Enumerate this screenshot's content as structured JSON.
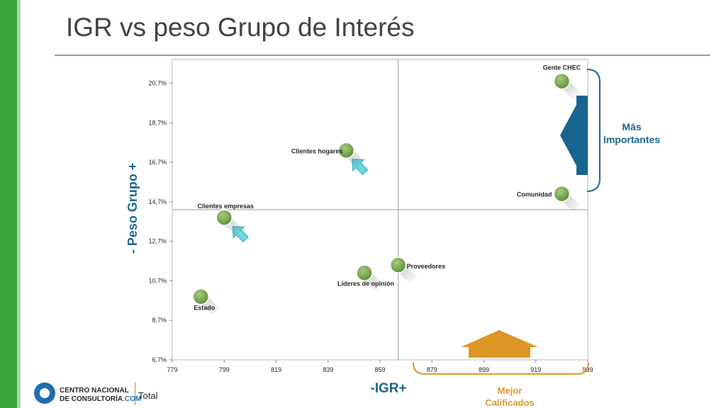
{
  "slide": {
    "title": "IGR vs peso Grupo de Interés",
    "footer": {
      "logo_line1": "CENTRO NACIONAL",
      "logo_line2_main": "DE CONSULTORÍA",
      "logo_line2_accent": ".COM",
      "label": "Total"
    }
  },
  "colors": {
    "accent_green": "#3aa33a",
    "point_fill": "#7aa850",
    "arrow_cyan": "#6cd6e2",
    "arrow_blue": "#17648f",
    "arrow_orange": "#dd9526",
    "axis_label_blue": "#17648f",
    "callout_orange": "#dd9526"
  },
  "chart_data": {
    "type": "scatter",
    "title": "",
    "xlabel": "-IGR+",
    "ylabel": "- Peso Grupo +",
    "xlim": [
      779,
      939
    ],
    "ylim": [
      6.7,
      21.9
    ],
    "x_ticks": [
      779,
      799,
      819,
      839,
      859,
      879,
      899,
      919,
      939
    ],
    "x_tick_labels": [
      "779",
      "799",
      "819",
      "839",
      "859",
      "879",
      "899",
      "919",
      "939"
    ],
    "y_ticks": [
      6.7,
      8.7,
      10.7,
      12.7,
      14.7,
      16.7,
      18.7,
      20.7
    ],
    "y_tick_labels": [
      "6,7%",
      "8,7%",
      "10,7%",
      "12,7%",
      "14,7%",
      "16,7%",
      "18,7%",
      "20,7%"
    ],
    "quadrant_lines": {
      "x": 866,
      "y": 14.3
    },
    "grid": false,
    "points": [
      {
        "label": "Gente CHEC",
        "x": 929,
        "y": 20.8
      },
      {
        "label": "Comunidad",
        "x": 929,
        "y": 15.1
      },
      {
        "label": "Clientes hogares",
        "x": 846,
        "y": 17.3
      },
      {
        "label": "Clientes empresas",
        "x": 799,
        "y": 13.9
      },
      {
        "label": "Proveedores",
        "x": 866,
        "y": 11.5
      },
      {
        "label": "Lideres de opinión",
        "x": 853,
        "y": 11.1
      },
      {
        "label": "Estado",
        "x": 790,
        "y": 9.9
      }
    ],
    "annotations": [
      {
        "text_line1": "Más",
        "text_line2": "Importantes"
      },
      {
        "text_line1": "Mejor",
        "text_line2": "Calificados"
      }
    ]
  }
}
